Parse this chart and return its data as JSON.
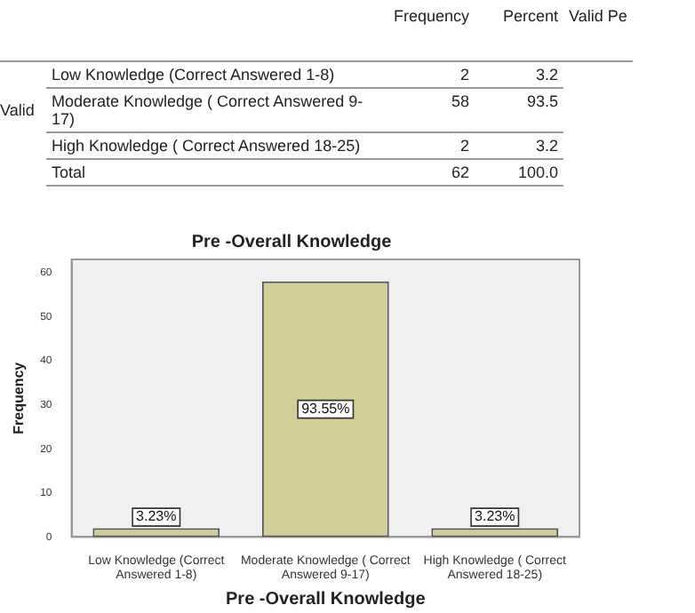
{
  "chart_data": [
    {
      "type": "other",
      "categories": [
        "Low Knowledge (Correct Answered 1-8)",
        "Moderate Knowledge ( Correct Answered 9-17)",
        "High Knowledge ( Correct Answered 18-25)",
        "Total"
      ],
      "series": [
        {
          "name": "Frequency",
          "values": [
            2,
            58,
            2,
            62
          ]
        },
        {
          "name": "Percent",
          "values": [
            3.2,
            93.5,
            3.2,
            100.0
          ],
          "value_labels": [
            "3.2",
            "93.5",
            "3.2",
            "100.0"
          ]
        }
      ],
      "annotations": [
        "Valid",
        "Valid Pe"
      ],
      "data_labels": true
    },
    {
      "type": "bar",
      "title": "Pre -Overall Knowledge",
      "xlabel": "Pre -Overall Knowledge",
      "ylabel": "Frequency",
      "categories": [
        "Low Knowledge (Correct Answered 1-8)",
        "Moderate Knowledge ( Correct Answered 9-17)",
        "High Knowledge ( Correct Answered 18-25)"
      ],
      "values": [
        2,
        58,
        2
      ],
      "color": "#d3ce97",
      "annotations": [
        {
          "text": "3.23%",
          "x": "Low Knowledge (Correct Answered 1-8)",
          "y": 4.5
        },
        {
          "text": "93.55%",
          "x": "Moderate Knowledge ( Correct Answered 9-17)",
          "y": 29
        },
        {
          "text": "3.23%",
          "x": "High Knowledge ( Correct Answered 18-25)",
          "y": 4.5
        }
      ],
      "ylim": [
        0,
        63
      ],
      "yticks": [
        0,
        10,
        20,
        30,
        40,
        50,
        60
      ],
      "grid": false
    }
  ]
}
